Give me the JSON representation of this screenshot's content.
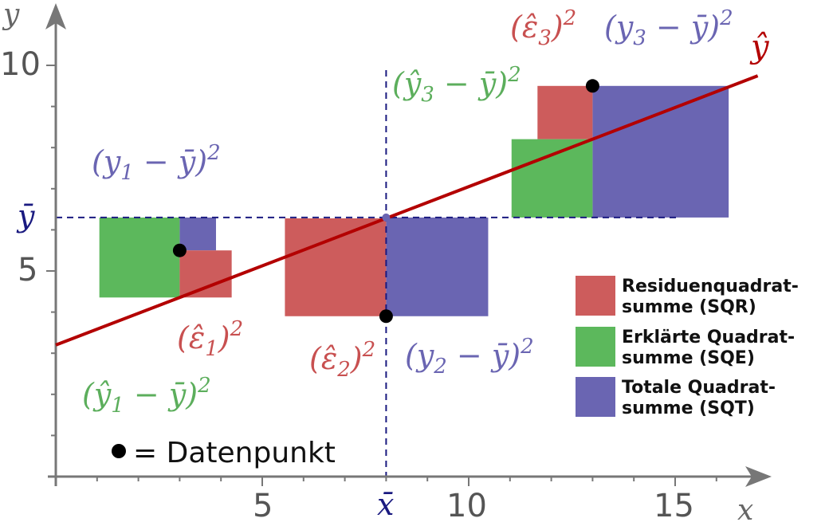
{
  "axes": {
    "x_label": "x",
    "y_label": "y",
    "x_ticks": [
      "5",
      "10",
      "15"
    ],
    "y_ticks": [
      "5",
      "10"
    ],
    "x_mean_label": "x̄",
    "y_mean_label": "ȳ",
    "regression_label": "ŷ"
  },
  "chart_data": {
    "type": "scatter",
    "xlim": [
      0,
      17
    ],
    "ylim": [
      0,
      11
    ],
    "x_mean": 8,
    "y_mean": 6.3,
    "regression_line": {
      "intercept": 3.2,
      "slope": 0.385
    },
    "points": [
      {
        "x": 3,
        "y": 5.5
      },
      {
        "x": 8,
        "y": 3.9
      },
      {
        "x": 13,
        "y": 9.5
      }
    ],
    "labels": {
      "res1": {
        "base": "(ε̂",
        "sub": "1",
        "close": ")",
        "sup": "2"
      },
      "res2": {
        "base": "(ε̂",
        "sub": "2",
        "close": ")",
        "sup": "2"
      },
      "res3": {
        "base": "(ε̂",
        "sub": "3",
        "close": ")",
        "sup": "2"
      },
      "tot1": {
        "base": "(y",
        "sub": "1",
        "close": " − ȳ)",
        "sup": "2"
      },
      "tot2": {
        "base": "(y",
        "sub": "2",
        "close": " − ȳ)",
        "sup": "2"
      },
      "tot3": {
        "base": "(y",
        "sub": "3",
        "close": " − ȳ)",
        "sup": "2"
      },
      "exp1": {
        "base": "(ŷ",
        "sub": "1",
        "close": " − ȳ)",
        "sup": "2"
      },
      "exp3": {
        "base": "(ŷ",
        "sub": "3",
        "close": " − ȳ)",
        "sup": "2"
      }
    }
  },
  "legend": [
    {
      "line1": "Residuenquadrat-",
      "line2": "summe (SQR)",
      "color": "#cd5c5c"
    },
    {
      "line1": "Erklärte Quadrat-",
      "line2": "summe (SQE)",
      "color": "#5cb85c"
    },
    {
      "line1": "Totale Quadrat-",
      "line2": "summe (SQT)",
      "color": "#6a65b2"
    }
  ],
  "data_point_note": "= Datenpunkt",
  "colors": {
    "residual": "#cd5c5c",
    "explained": "#5cb85c",
    "total": "#6a65b2",
    "regression": "#b30000",
    "axis": "#777777",
    "mean": "#1a1a80",
    "residual_text": "#c85050",
    "explained_text": "#5cae5c",
    "total_text": "#6a65b2"
  }
}
